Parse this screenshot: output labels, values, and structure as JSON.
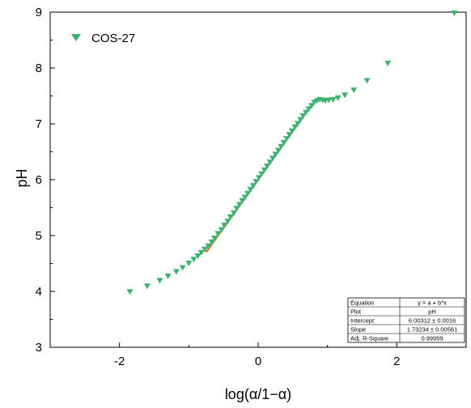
{
  "chart_data": {
    "type": "scatter",
    "title": "",
    "xlabel": "log(α/1−α)",
    "ylabel": "pH",
    "xlim": [
      -3,
      3
    ],
    "ylim": [
      3,
      9
    ],
    "x_ticks": [
      -2,
      0,
      2
    ],
    "x_tick_labels": [
      "-2",
      "0",
      "2"
    ],
    "y_ticks": [
      3,
      4,
      5,
      6,
      7,
      8,
      9
    ],
    "y_tick_labels": [
      "3",
      "4",
      "5",
      "6",
      "7",
      "8",
      "9"
    ],
    "grid": false,
    "legend_position": "top-left",
    "series": [
      {
        "name": "COS-27",
        "marker": "triangle-down",
        "color": "#3cb371",
        "x": [
          -1.85,
          -1.6,
          -1.42,
          -1.3,
          -1.18,
          -1.09,
          -1.0,
          -0.93,
          -0.87,
          -0.82,
          -0.77,
          -0.72,
          -0.67,
          -0.63,
          -0.58,
          -0.53,
          -0.49,
          -0.44,
          -0.4,
          -0.35,
          -0.31,
          -0.27,
          -0.23,
          -0.19,
          -0.15,
          -0.11,
          -0.07,
          -0.03,
          0.01,
          0.05,
          0.09,
          0.13,
          0.17,
          0.21,
          0.25,
          0.29,
          0.33,
          0.37,
          0.41,
          0.45,
          0.49,
          0.53,
          0.57,
          0.61,
          0.65,
          0.69,
          0.73,
          0.77,
          0.81,
          0.85,
          0.89,
          0.93,
          0.97,
          1.02,
          1.08,
          1.15,
          1.25,
          1.38,
          1.57,
          1.87,
          2.83
        ],
        "y": [
          3.99,
          4.09,
          4.19,
          4.27,
          4.35,
          4.42,
          4.5,
          4.57,
          4.63,
          4.69,
          4.75,
          4.81,
          4.88,
          4.95,
          5.03,
          5.1,
          5.18,
          5.25,
          5.33,
          5.4,
          5.48,
          5.55,
          5.62,
          5.68,
          5.75,
          5.82,
          5.89,
          5.96,
          6.03,
          6.1,
          6.17,
          6.24,
          6.31,
          6.38,
          6.45,
          6.52,
          6.59,
          6.66,
          6.73,
          6.8,
          6.87,
          6.94,
          7.0,
          7.07,
          7.14,
          7.2,
          7.26,
          7.32,
          7.38,
          7.41,
          7.43,
          7.42,
          7.41,
          7.42,
          7.43,
          7.46,
          7.51,
          7.6,
          7.77,
          8.08,
          8.98
        ]
      }
    ],
    "fit_line": {
      "color": "#e87722",
      "intercept": 6.00312,
      "slope": 1.73234,
      "x_range": [
        -0.75,
        0.75
      ]
    },
    "fit_table": {
      "rows": [
        [
          "Equation",
          "y = a + b*x"
        ],
        [
          "Plot",
          "pH"
        ],
        [
          "Intercept",
          "6.00312 ± 0.0016"
        ],
        [
          "Slope",
          "1.73234 ± 0.00561"
        ],
        [
          "Adj. R-Square",
          "0.99959"
        ]
      ]
    }
  }
}
